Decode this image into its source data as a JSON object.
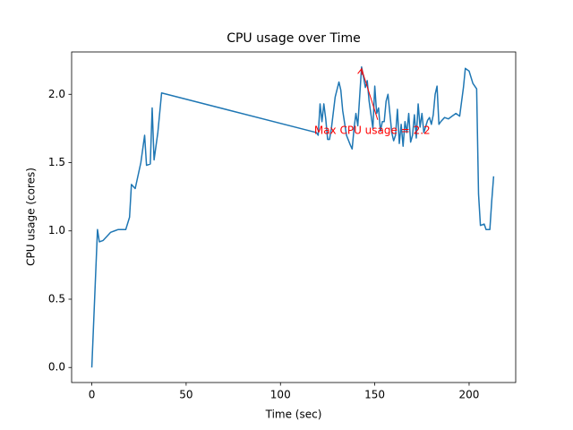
{
  "chart_data": {
    "type": "line",
    "title": "CPU usage over Time",
    "x_label": "Time (sec)",
    "y_label": "CPU usage (cores)",
    "color": "#1f77b4",
    "x": [
      0,
      3,
      4,
      6,
      8,
      10,
      12,
      14,
      18,
      20,
      21,
      23,
      26,
      28,
      29,
      31,
      32,
      33,
      35,
      37,
      119,
      120,
      121,
      122,
      123,
      124,
      125,
      126,
      127,
      129,
      131,
      132,
      133,
      135,
      137,
      138,
      139,
      140,
      141,
      143,
      144,
      145,
      146,
      147,
      149,
      150,
      151,
      152,
      153,
      154,
      155,
      156,
      157,
      158,
      159,
      160,
      161,
      162,
      163,
      164,
      165,
      166,
      167,
      168,
      169,
      170,
      171,
      172,
      173,
      174,
      175,
      176,
      178,
      179,
      180,
      181,
      182,
      183,
      184,
      185,
      187,
      189,
      191,
      193,
      195,
      197,
      198,
      200,
      202,
      204,
      205,
      206,
      208,
      209,
      211,
      212,
      213
    ],
    "values": [
      0,
      1.01,
      0.92,
      0.93,
      0.96,
      0.99,
      1.0,
      1.01,
      1.01,
      1.1,
      1.34,
      1.31,
      1.5,
      1.7,
      1.48,
      1.49,
      1.9,
      1.52,
      1.72,
      2.01,
      1.72,
      1.7,
      1.93,
      1.8,
      1.93,
      1.82,
      1.67,
      1.67,
      1.75,
      1.98,
      2.09,
      2.03,
      1.88,
      1.7,
      1.63,
      1.6,
      1.75,
      1.86,
      1.77,
      2.2,
      2.13,
      2.05,
      2.1,
      1.95,
      1.75,
      2.06,
      1.86,
      1.9,
      1.73,
      1.8,
      1.8,
      1.95,
      2.0,
      1.86,
      1.72,
      1.66,
      1.7,
      1.89,
      1.64,
      1.78,
      1.62,
      1.8,
      1.72,
      1.86,
      1.65,
      1.7,
      1.85,
      1.68,
      1.93,
      1.76,
      1.86,
      1.72,
      1.81,
      1.83,
      1.78,
      1.85,
      2.0,
      2.06,
      1.78,
      1.8,
      1.83,
      1.82,
      1.84,
      1.86,
      1.84,
      2.05,
      2.19,
      2.17,
      2.08,
      2.04,
      1.27,
      1.04,
      1.05,
      1.01,
      1.01,
      1.22,
      1.4
    ],
    "xlim": [
      -10.7,
      224.7
    ],
    "ylim": [
      -0.11,
      2.31
    ],
    "xticks": [
      0,
      50,
      100,
      150,
      200
    ],
    "yticks": [
      {
        "value": 0,
        "label": "0.0"
      },
      {
        "value": 0.5,
        "label": "0.5"
      },
      {
        "value": 1,
        "label": "1.0"
      },
      {
        "value": 1.5,
        "label": "1.5"
      },
      {
        "value": 2,
        "label": "2.0"
      }
    ],
    "annotation": {
      "text": "Max CPU usage = 2.2",
      "x": 143,
      "y": 2.2,
      "color": "red"
    }
  }
}
